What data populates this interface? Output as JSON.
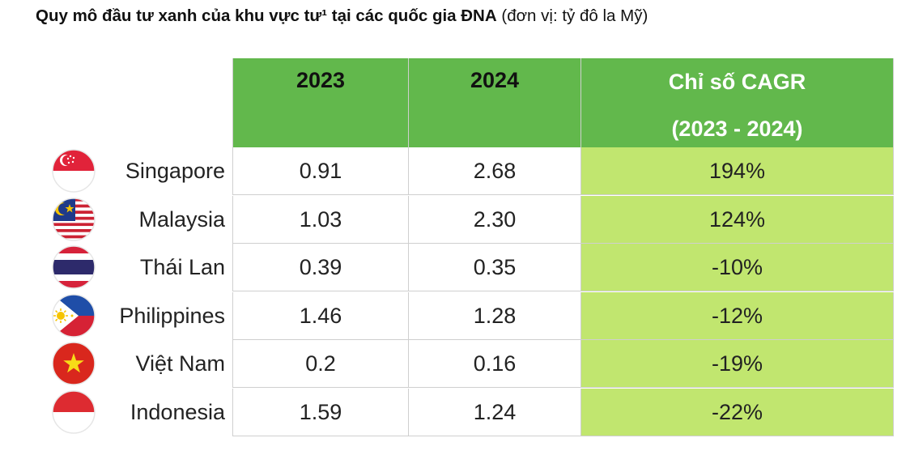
{
  "title": {
    "bold": "Quy mô đầu tư xanh của khu vực tư¹ tại các quốc gia ĐNA",
    "unit": "(đơn vị: tỷ đô la Mỹ)"
  },
  "colors": {
    "header_green": "#62b84c",
    "cagr_green": "#c1e66f"
  },
  "chart_data": {
    "type": "table",
    "title": "Quy mô đầu tư xanh của khu vực tư¹ tại các quốc gia ĐNA",
    "columns": [
      "2023",
      "2024",
      "Chỉ số CAGR",
      "(2023 - 2024)"
    ],
    "rows": [
      {
        "country": "Singapore",
        "flag": "singapore-flag-icon",
        "y2023": "0.91",
        "y2024": "2.68",
        "cagr": "194%"
      },
      {
        "country": "Malaysia",
        "flag": "malaysia-flag-icon",
        "y2023": "1.03",
        "y2024": "2.30",
        "cagr": "124%"
      },
      {
        "country": "Thái Lan",
        "flag": "thailand-flag-icon",
        "y2023": "0.39",
        "y2024": "0.35",
        "cagr": "-10%"
      },
      {
        "country": "Philippines",
        "flag": "philippines-flag-icon",
        "y2023": "1.46",
        "y2024": "1.28",
        "cagr": "-12%"
      },
      {
        "country": "Việt Nam",
        "flag": "vietnam-flag-icon",
        "y2023": "0.2",
        "y2024": "0.16",
        "cagr": "-19%"
      },
      {
        "country": "Indonesia",
        "flag": "indonesia-flag-icon",
        "y2023": "1.59",
        "y2024": "1.24",
        "cagr": "-22%"
      }
    ]
  }
}
